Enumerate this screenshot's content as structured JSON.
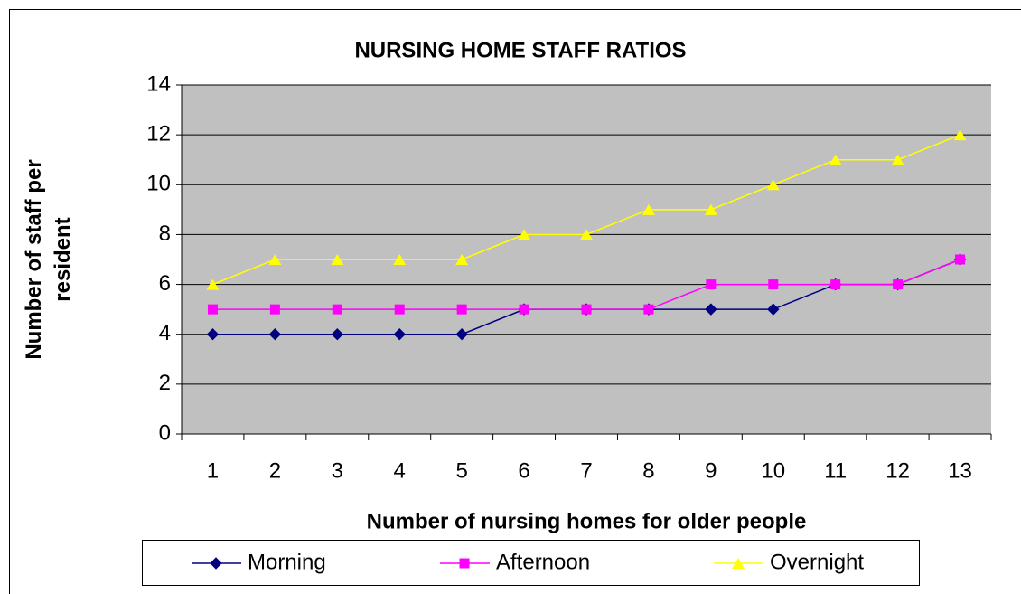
{
  "chart_data": {
    "type": "line",
    "title": "NURSING HOME STAFF RATIOS",
    "x_label": "Number of nursing homes for older people",
    "y_label": "Number of staff per resident",
    "categories": [
      "1",
      "2",
      "3",
      "4",
      "5",
      "6",
      "7",
      "8",
      "9",
      "10",
      "11",
      "12",
      "13"
    ],
    "series": [
      {
        "name": "Morning",
        "color": "#000080",
        "marker": "diamond",
        "values": [
          4,
          4,
          4,
          4,
          4,
          5,
          5,
          5,
          5,
          5,
          6,
          6,
          7
        ]
      },
      {
        "name": "Afternoon",
        "color": "#ff00ff",
        "marker": "square",
        "values": [
          5,
          5,
          5,
          5,
          5,
          5,
          5,
          5,
          6,
          6,
          6,
          6,
          7
        ]
      },
      {
        "name": "Overnight",
        "color": "#ffff00",
        "marker": "triangle",
        "values": [
          6,
          7,
          7,
          7,
          7,
          8,
          8,
          9,
          9,
          10,
          11,
          11,
          12
        ]
      }
    ],
    "ylim": [
      0,
      14
    ],
    "yticks": [
      0,
      2,
      4,
      6,
      8,
      10,
      12,
      14
    ],
    "grid": true,
    "plot_background": "#c0c0c0",
    "legend": "bottom"
  }
}
